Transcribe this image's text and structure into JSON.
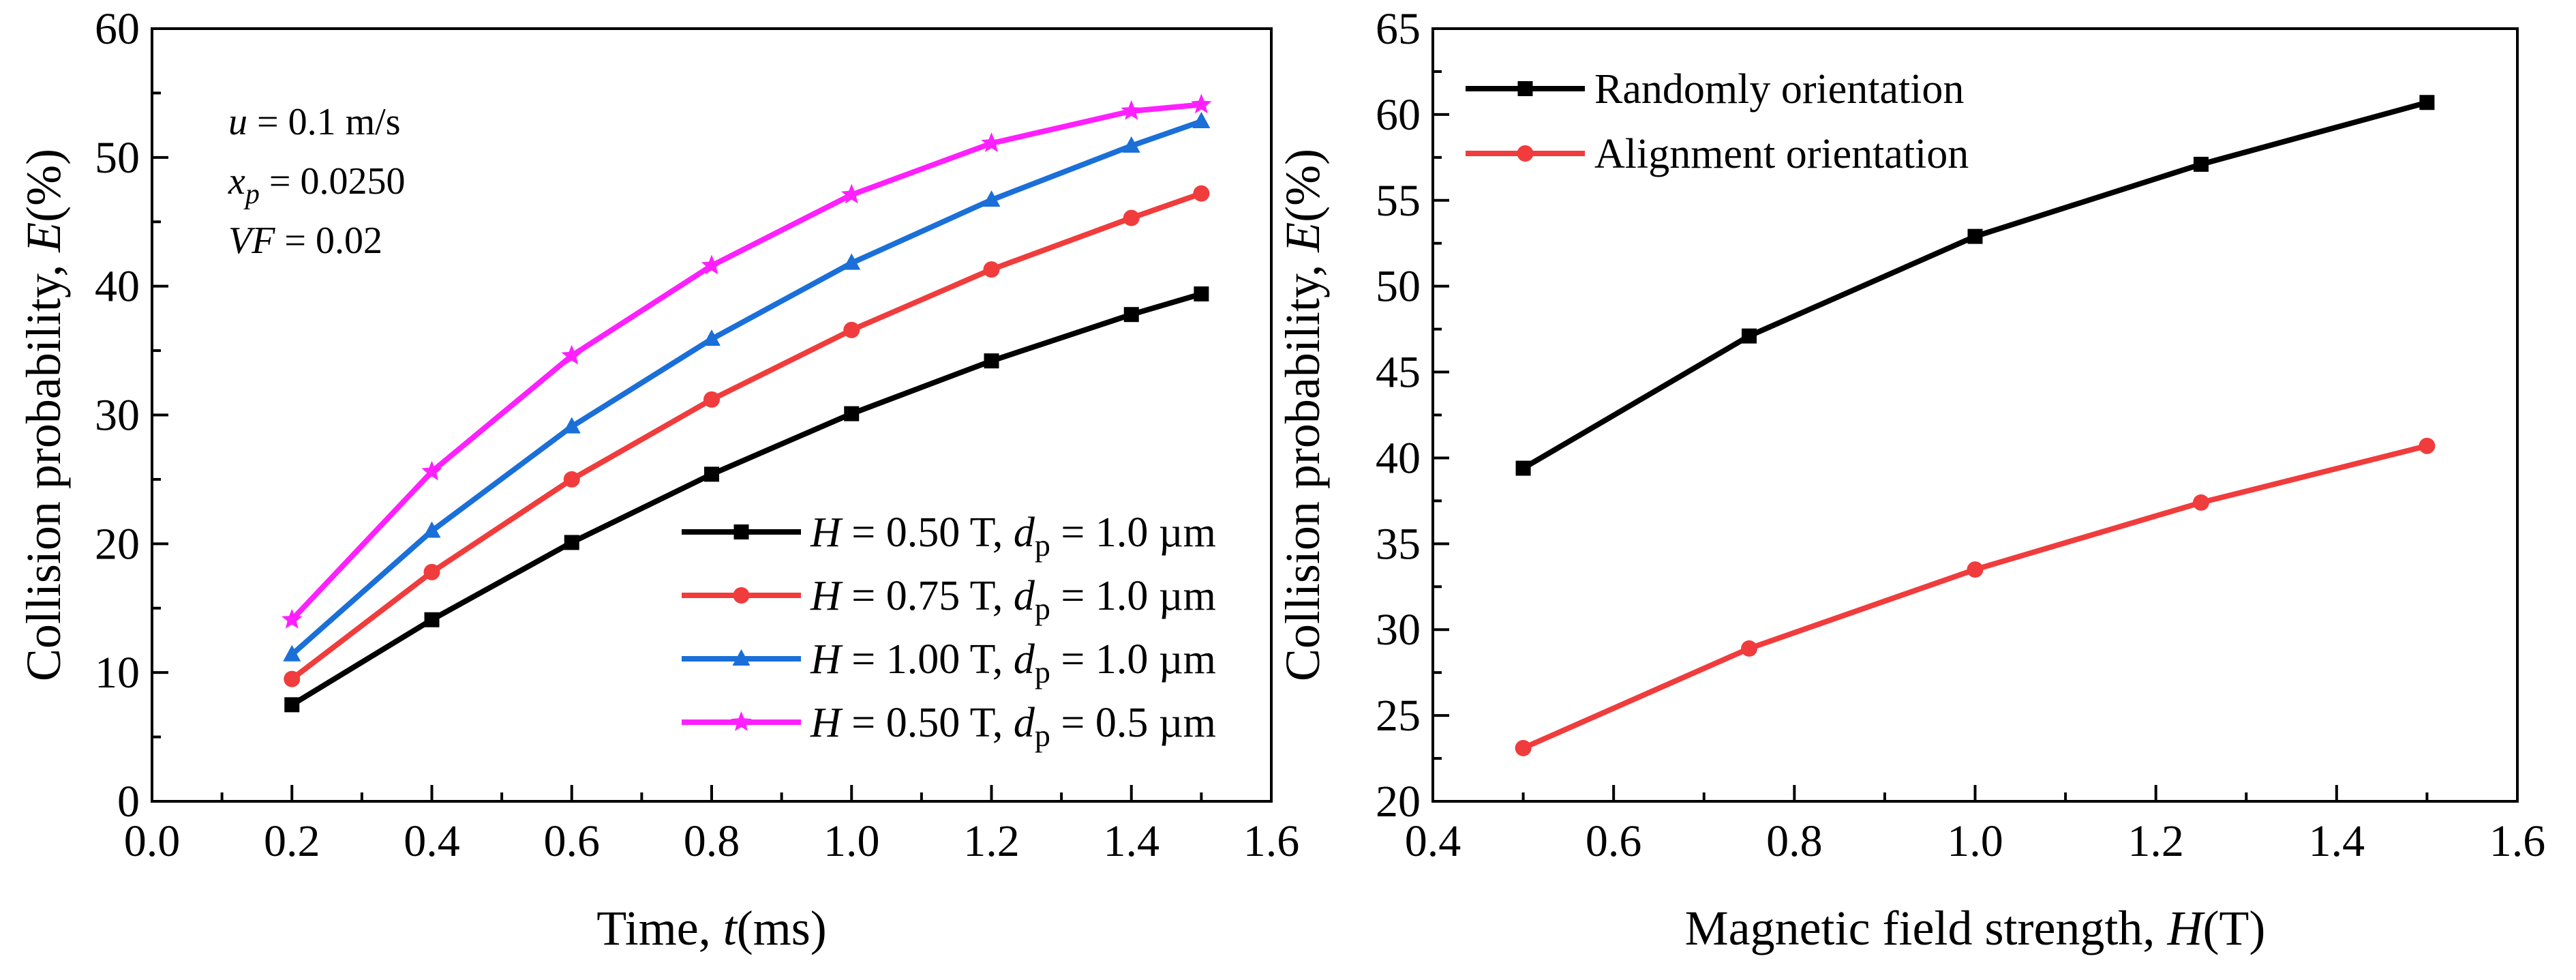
{
  "chart_data": [
    {
      "type": "line",
      "xlabel": "Time, t(ms)",
      "xlabel_parts": {
        "prefix": "Time, ",
        "var": "t",
        "suffix": "(ms)"
      },
      "ylabel": "Collision probability, E(%)",
      "ylabel_parts": {
        "prefix": "Collision probability, ",
        "var": "E",
        "suffix": "(%)"
      },
      "xlim": [
        0.0,
        1.6
      ],
      "ylim": [
        0,
        60
      ],
      "xticks": [
        0.0,
        0.2,
        0.4,
        0.6,
        0.8,
        1.0,
        1.2,
        1.4,
        1.6
      ],
      "xtick_labels": [
        "0.0",
        "0.2",
        "0.4",
        "0.6",
        "0.8",
        "1.0",
        "1.2",
        "1.4",
        "1.6"
      ],
      "yticks": [
        0,
        10,
        20,
        30,
        40,
        50,
        60
      ],
      "ytick_labels": [
        "0",
        "10",
        "20",
        "30",
        "40",
        "50",
        "60"
      ],
      "annotation": [
        {
          "var": "u",
          "sub": "",
          "text": " = 0.1 m/s"
        },
        {
          "var": "x",
          "sub": "p",
          "text": " = 0.0250"
        },
        {
          "var": "VF",
          "sub": "",
          "text": " = 0.02"
        }
      ],
      "legend_position": "lower-right",
      "x": [
        0.2,
        0.4,
        0.6,
        0.8,
        1.0,
        1.2,
        1.4,
        1.5
      ],
      "series": [
        {
          "name": "H = 0.50 T, dp = 1.0 µm",
          "label_parts": [
            "H",
            " = 0.50 T, ",
            "d",
            "p",
            " = 1.0 µm"
          ],
          "color": "#000000",
          "marker": "square",
          "values": [
            7.5,
            14.1,
            20.1,
            25.4,
            30.1,
            34.2,
            37.8,
            39.4
          ]
        },
        {
          "name": "H = 0.75 T, dp = 1.0 µm",
          "label_parts": [
            "H",
            " = 0.75 T, ",
            "d",
            "p",
            " = 1.0 µm"
          ],
          "color": "#f03c3c",
          "marker": "circle",
          "values": [
            9.5,
            17.8,
            25.0,
            31.2,
            36.6,
            41.3,
            45.3,
            47.2
          ]
        },
        {
          "name": "H = 1.00 T, dp = 1.0 µm",
          "label_parts": [
            "H",
            " = 1.00 T, ",
            "d",
            "p",
            " = 1.0 µm"
          ],
          "color": "#1a6fd8",
          "marker": "triangle",
          "values": [
            11.4,
            21.0,
            29.1,
            35.9,
            41.8,
            46.7,
            50.9,
            52.8
          ]
        },
        {
          "name": "H = 0.50 T, dp = 0.5 µm",
          "label_parts": [
            "H",
            " = 0.50 T, ",
            "d",
            "p",
            " = 0.5 µm"
          ],
          "color": "#ff1fff",
          "marker": "star",
          "values": [
            14.1,
            25.6,
            34.6,
            41.6,
            47.1,
            51.1,
            53.6,
            54.1
          ]
        }
      ]
    },
    {
      "type": "line",
      "xlabel": "Magnetic field strength, H(T)",
      "xlabel_parts": {
        "prefix": "Magnetic field strength, ",
        "var": "H",
        "suffix": "(T)"
      },
      "ylabel": "Collision probability, E(%)",
      "ylabel_parts": {
        "prefix": "Collision probability, ",
        "var": "E",
        "suffix": "(%)"
      },
      "xlim": [
        0.4,
        1.6
      ],
      "ylim": [
        20,
        65
      ],
      "xticks": [
        0.4,
        0.6,
        0.8,
        1.0,
        1.2,
        1.4,
        1.6
      ],
      "xtick_labels": [
        "0.4",
        "0.6",
        "0.8",
        "1.0",
        "1.2",
        "1.4",
        "1.6"
      ],
      "yticks": [
        20,
        25,
        30,
        35,
        40,
        45,
        50,
        55,
        60,
        65
      ],
      "ytick_labels": [
        "20",
        "25",
        "30",
        "35",
        "40",
        "45",
        "50",
        "55",
        "60",
        "65"
      ],
      "legend_position": "top-left",
      "x": [
        0.5,
        0.75,
        1.0,
        1.25,
        1.5
      ],
      "series": [
        {
          "name": "Randomly orientation",
          "color": "#000000",
          "marker": "square",
          "values": [
            39.4,
            47.1,
            52.9,
            57.1,
            60.7
          ]
        },
        {
          "name": "Alignment orientation",
          "color": "#f03c3c",
          "marker": "circle",
          "values": [
            23.1,
            28.9,
            33.5,
            37.4,
            40.7
          ]
        }
      ]
    }
  ]
}
